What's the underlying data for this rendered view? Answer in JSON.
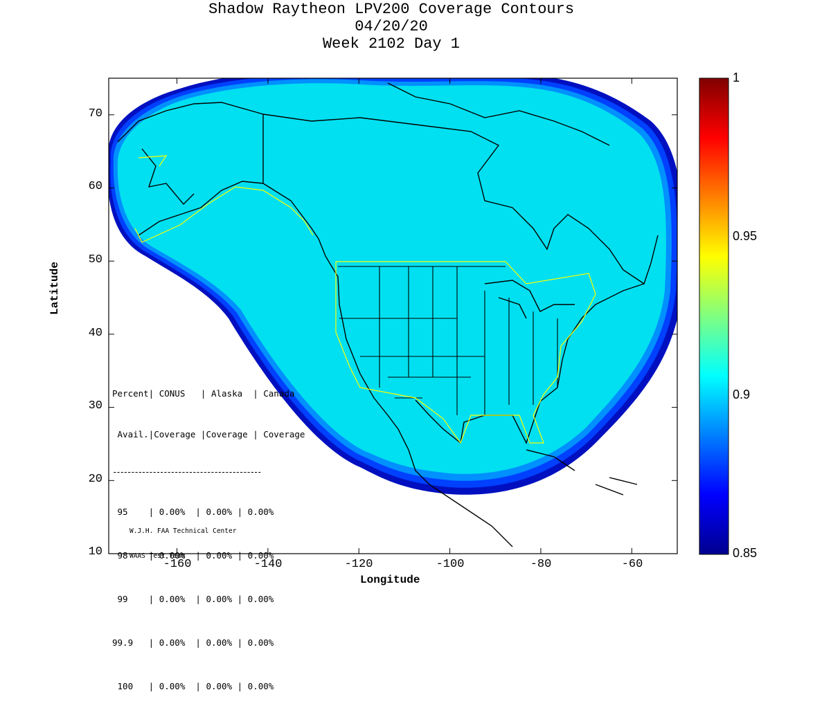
{
  "title_lines": [
    "Shadow Raytheon LPV200 Coverage Contours",
    "04/20/20",
    "Week 2102 Day 1"
  ],
  "axes": {
    "xlabel": "Longitude",
    "ylabel": "Latitude",
    "xlim": [
      -175,
      -50
    ],
    "ylim": [
      10,
      75
    ],
    "x_ticks": [
      "-160",
      "-140",
      "-120",
      "-100",
      "-80",
      "-60"
    ],
    "y_ticks": [
      "10",
      "20",
      "30",
      "40",
      "50",
      "60",
      "70"
    ]
  },
  "colorbar": {
    "ticks": [
      "1",
      "0.95",
      "0.9",
      "0.85"
    ],
    "range": [
      0.85,
      1
    ],
    "colormap": "jet"
  },
  "stats_table": {
    "header1": "Percent| CONUS   | Alaska  | Canada",
    "header2": " Avail.|Coverage |Coverage | Coverage",
    "rule": "-----------------------------------------",
    "rows": [
      " 95    | 0.00%  | 0.00% | 0.00%",
      " 98    | 0.00%  | 0.00% | 0.00%",
      " 99    | 0.00%  | 0.00% | 0.00%",
      "99.9   | 0.00%  | 0.00% | 0.00%",
      " 100   | 0.00%  | 0.00% | 0.00%"
    ]
  },
  "credit_lines": [
    "W.J.H. FAA Technical Center",
    "WAAS Test Team"
  ],
  "colors": {
    "coverage_fill": "#00e0f0",
    "outer_band_1": "#0090ff",
    "outer_band_2": "#0040ff",
    "outer_band_3": "#0010c0",
    "service_boundary": "#ffff00",
    "coastline": "#000000"
  },
  "chart_data": {
    "type": "heatmap",
    "x_range": [
      -175,
      -50
    ],
    "y_range": [
      10,
      75
    ],
    "value_range": [
      0.85,
      1
    ],
    "region_values": [
      {
        "region": "core coverage area",
        "value": 0.9
      },
      {
        "region": "outer edge band",
        "value": 0.885
      },
      {
        "region": "outer edge band",
        "value": 0.87
      },
      {
        "region": "outer edge band",
        "value": 0.855
      }
    ]
  }
}
